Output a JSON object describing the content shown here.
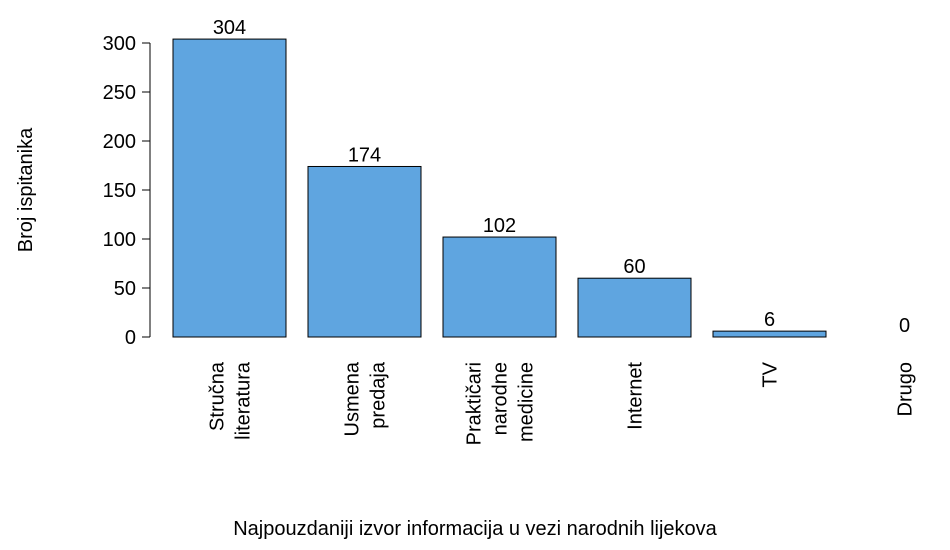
{
  "chart_data": {
    "type": "bar",
    "categories": [
      "Stručna\nliteratura",
      "Usmena\npredaja",
      "Praktičari\nnarodne\nmedicine",
      "Internet",
      "TV",
      "Drugo"
    ],
    "values": [
      304,
      174,
      102,
      60,
      6,
      0
    ],
    "color": "#5fa5e0",
    "y_label": "Broj ispitanika",
    "x_label": "Najpouzdaniji izvor informacija u vezi narodnih lijekova",
    "ylim": [
      0,
      300
    ],
    "yticks": [
      0,
      50,
      100,
      150,
      200,
      250,
      300
    ],
    "grid": false
  }
}
